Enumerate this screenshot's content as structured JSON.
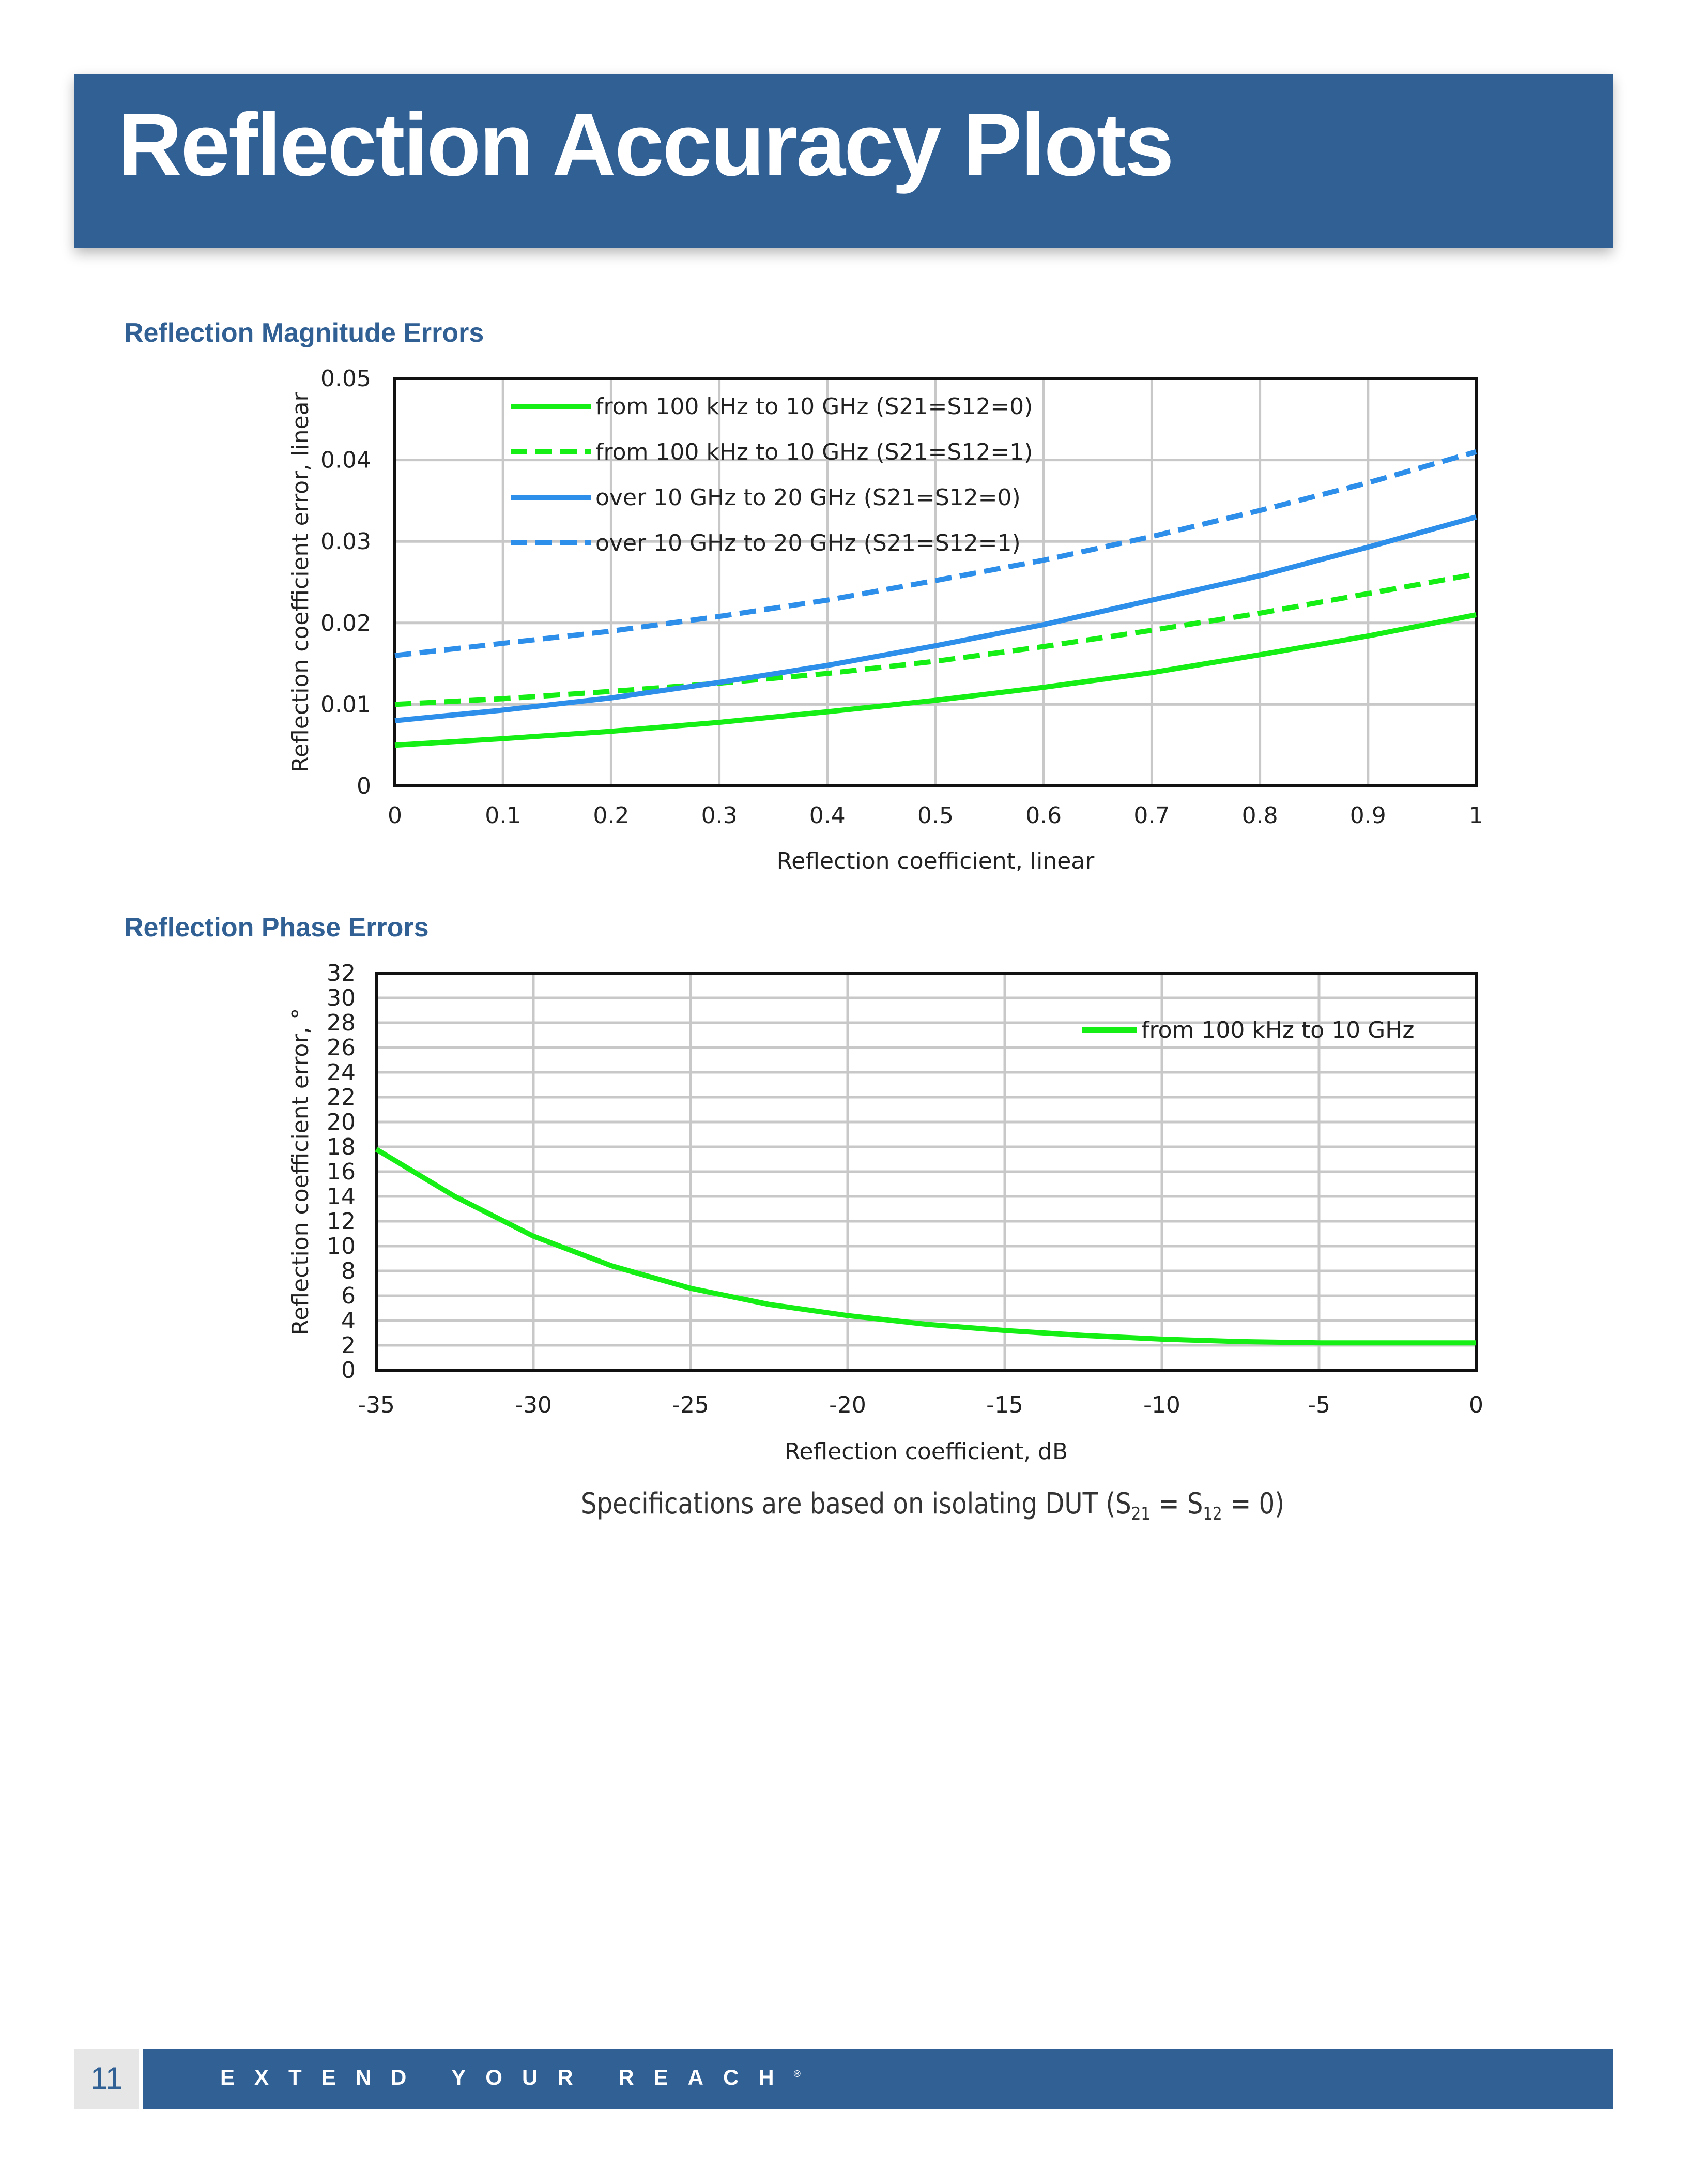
{
  "header": {
    "title": "Reflection Accuracy Plots"
  },
  "sections": {
    "magnitude_title": "Reflection Magnitude Errors",
    "phase_title": "Reflection Phase Errors"
  },
  "note": {
    "prefix": "Specifications are based on isolating DUT (S",
    "sub1": "21",
    "mid": " = S",
    "sub2": "12",
    "suffix": " = 0)"
  },
  "footer": {
    "page_number": "11",
    "tagline": "EXTEND YOUR REACH",
    "trademark": "®"
  },
  "colors": {
    "brand": "#316095",
    "green": "#16ef16",
    "blue": "#2e8fea"
  },
  "chart_data": [
    {
      "type": "line",
      "title": "",
      "xlabel": "Reflection coefficient, linear",
      "ylabel": "Reflection coefficient error, linear",
      "xlim": [
        0,
        1
      ],
      "ylim": [
        0,
        0.05
      ],
      "xticks": [
        "0",
        "0.1",
        "0.2",
        "0.3",
        "0.4",
        "0.5",
        "0.6",
        "0.7",
        "0.8",
        "0.9",
        "1"
      ],
      "yticks": [
        "0",
        "0.01",
        "0.02",
        "0.03",
        "0.04",
        "0.05"
      ],
      "grid": true,
      "legend": "top-left",
      "x": [
        0,
        0.1,
        0.2,
        0.3,
        0.4,
        0.5,
        0.6,
        0.7,
        0.8,
        0.9,
        1.0
      ],
      "series": [
        {
          "name": "from 100 kHz to 10 GHz (S21=S12=0)",
          "color": "#16ef16",
          "dash": "solid",
          "values": [
            0.005,
            0.0058,
            0.0067,
            0.0078,
            0.0091,
            0.0105,
            0.0121,
            0.0139,
            0.0161,
            0.0184,
            0.021
          ]
        },
        {
          "name": "from 100 kHz to 10 GHz (S21=S12=1)",
          "color": "#16ef16",
          "dash": "dashed",
          "values": [
            0.01,
            0.0107,
            0.0116,
            0.0126,
            0.0138,
            0.0153,
            0.0171,
            0.0191,
            0.0212,
            0.0236,
            0.026
          ]
        },
        {
          "name": "over 10 GHz to 20 GHz (S21=S12=0)",
          "color": "#2e8fea",
          "dash": "solid",
          "values": [
            0.008,
            0.0093,
            0.0108,
            0.0127,
            0.0148,
            0.0172,
            0.0198,
            0.0228,
            0.0258,
            0.0293,
            0.033
          ]
        },
        {
          "name": "over 10 GHz to 20 GHz (S21=S12=1)",
          "color": "#2e8fea",
          "dash": "dashed",
          "values": [
            0.016,
            0.0175,
            0.019,
            0.0208,
            0.0228,
            0.0252,
            0.0277,
            0.0306,
            0.0338,
            0.0372,
            0.041
          ]
        }
      ]
    },
    {
      "type": "line",
      "title": "",
      "xlabel": "Reflection coefficient, dB",
      "ylabel": "Reflection coefficient error, °",
      "xlim": [
        -35,
        0
      ],
      "ylim": [
        0,
        32
      ],
      "xticks": [
        "-35",
        "-30",
        "-25",
        "-20",
        "-15",
        "-10",
        "-5",
        "0"
      ],
      "yticks": [
        "0",
        "2",
        "4",
        "6",
        "8",
        "10",
        "12",
        "14",
        "16",
        "18",
        "20",
        "22",
        "24",
        "26",
        "28",
        "30",
        "32"
      ],
      "grid": true,
      "legend": "top-right",
      "x": [
        -35,
        -32.5,
        -30,
        -27.5,
        -25,
        -22.5,
        -20,
        -17.5,
        -15,
        -12.5,
        -10,
        -7.5,
        -5,
        -2.5,
        0
      ],
      "series": [
        {
          "name": "from 100 kHz to 10 GHz",
          "color": "#16ef16",
          "dash": "solid",
          "values": [
            17.8,
            14.0,
            10.8,
            8.4,
            6.6,
            5.3,
            4.4,
            3.7,
            3.2,
            2.8,
            2.5,
            2.3,
            2.2,
            2.2,
            2.2
          ]
        }
      ]
    }
  ]
}
